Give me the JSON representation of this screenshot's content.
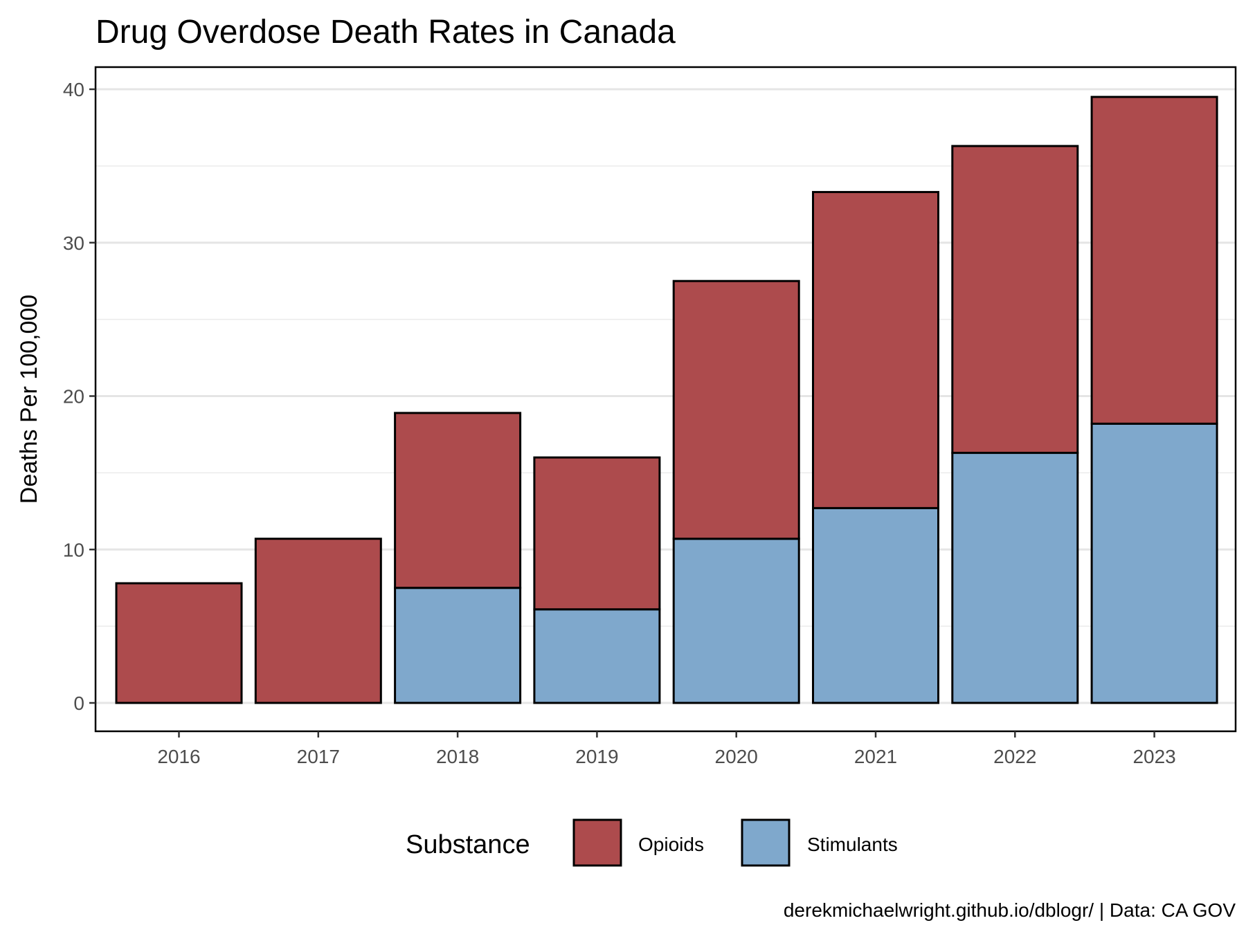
{
  "chart_data": {
    "type": "bar",
    "stacked": true,
    "title": "Drug Overdose Death Rates in Canada",
    "ylabel": "Deaths Per 100,000",
    "xlabel": "",
    "categories": [
      "2016",
      "2017",
      "2018",
      "2019",
      "2020",
      "2021",
      "2022",
      "2023"
    ],
    "ylim": [
      0,
      40
    ],
    "y_ticks": [
      0,
      10,
      20,
      30,
      40
    ],
    "grid": true,
    "series": [
      {
        "name": "Stimulants",
        "color": "#7fa8cc",
        "values": [
          0,
          0,
          7.5,
          6.1,
          10.7,
          12.7,
          16.3,
          18.2
        ]
      },
      {
        "name": "Opioids",
        "color": "#ad4b4d",
        "values": [
          7.8,
          10.7,
          11.4,
          9.9,
          16.8,
          20.6,
          20.0,
          21.3
        ]
      }
    ],
    "legend": {
      "title": "Substance",
      "position": "bottom",
      "order": [
        "Opioids",
        "Stimulants"
      ]
    },
    "caption": "derekmichaelwright.github.io/dblogr/ | Data: CA GOV"
  }
}
